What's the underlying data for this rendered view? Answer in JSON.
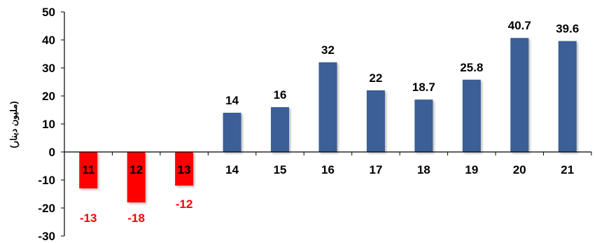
{
  "chart_data": {
    "type": "bar",
    "title": "",
    "xlabel": "",
    "ylabel": "(مليون دينار)",
    "categories": [
      "11",
      "12",
      "13",
      "14",
      "15",
      "16",
      "17",
      "18",
      "19",
      "20",
      "21"
    ],
    "values": [
      -13,
      -18,
      -12,
      14,
      16,
      32,
      22,
      18.7,
      25.8,
      40.7,
      39.6
    ],
    "value_labels": [
      "-13",
      "-18",
      "-12",
      "14",
      "16",
      "32",
      "22",
      "18.7",
      "25.8",
      "40.7",
      "39.6"
    ],
    "ylim": [
      -30,
      50
    ],
    "yticks": [
      "50",
      "40",
      "30",
      "20",
      "10",
      "0",
      "-10",
      "-20",
      "-30"
    ],
    "grid": false,
    "legend": "none",
    "colors": {
      "positive": "#3A5F96",
      "negative": "#FF0000",
      "negative_label": "#FF0000",
      "positive_label": "#000000",
      "axis": "#000000"
    }
  }
}
